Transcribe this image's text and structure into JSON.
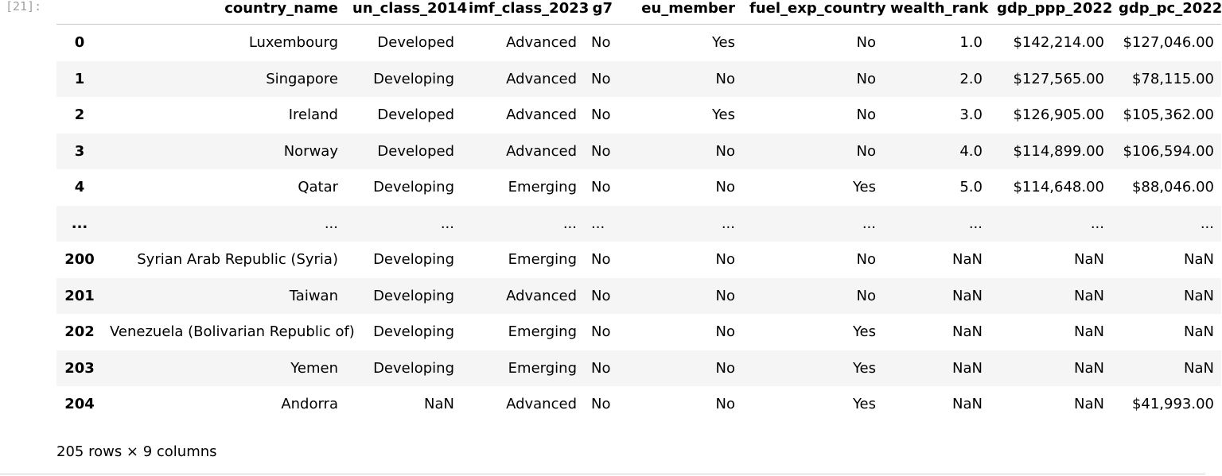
{
  "cell": {
    "prompt": "[21]:",
    "caption": "205 rows × 9 columns"
  },
  "table": {
    "index_header": "",
    "columns": [
      "country_name",
      "un_class_2014",
      "imf_class_2023",
      "g7",
      "eu_member",
      "fuel_exp_country",
      "wealth_rank",
      "gdp_ppp_2022",
      "gdp_pc_2022"
    ],
    "rows": [
      {
        "index": "0",
        "cells": [
          "Luxembourg",
          "Developed",
          "Advanced",
          "No",
          "Yes",
          "No",
          "1.0",
          "$142,214.00",
          "$127,046.00"
        ]
      },
      {
        "index": "1",
        "cells": [
          "Singapore",
          "Developing",
          "Advanced",
          "No",
          "No",
          "No",
          "2.0",
          "$127,565.00",
          "$78,115.00"
        ]
      },
      {
        "index": "2",
        "cells": [
          "Ireland",
          "Developed",
          "Advanced",
          "No",
          "Yes",
          "No",
          "3.0",
          "$126,905.00",
          "$105,362.00"
        ]
      },
      {
        "index": "3",
        "cells": [
          "Norway",
          "Developed",
          "Advanced",
          "No",
          "No",
          "No",
          "4.0",
          "$114,899.00",
          "$106,594.00"
        ]
      },
      {
        "index": "4",
        "cells": [
          "Qatar",
          "Developing",
          "Emerging",
          "No",
          "No",
          "Yes",
          "5.0",
          "$114,648.00",
          "$88,046.00"
        ]
      },
      {
        "index": "...",
        "cells": [
          "...",
          "...",
          "...",
          "...",
          "...",
          "...",
          "...",
          "...",
          "..."
        ]
      },
      {
        "index": "200",
        "cells": [
          "Syrian Arab Republic (Syria)",
          "Developing",
          "Emerging",
          "No",
          "No",
          "No",
          "NaN",
          "NaN",
          "NaN"
        ]
      },
      {
        "index": "201",
        "cells": [
          "Taiwan",
          "Developing",
          "Advanced",
          "No",
          "No",
          "No",
          "NaN",
          "NaN",
          "NaN"
        ]
      },
      {
        "index": "202",
        "cells": [
          "Venezuela (Bolivarian Republic of)",
          "Developing",
          "Emerging",
          "No",
          "No",
          "Yes",
          "NaN",
          "NaN",
          "NaN"
        ]
      },
      {
        "index": "203",
        "cells": [
          "Yemen",
          "Developing",
          "Emerging",
          "No",
          "No",
          "Yes",
          "NaN",
          "NaN",
          "NaN"
        ]
      },
      {
        "index": "204",
        "cells": [
          "Andorra",
          "NaN",
          "Advanced",
          "No",
          "No",
          "Yes",
          "NaN",
          "NaN",
          "$41,993.00"
        ]
      }
    ]
  }
}
